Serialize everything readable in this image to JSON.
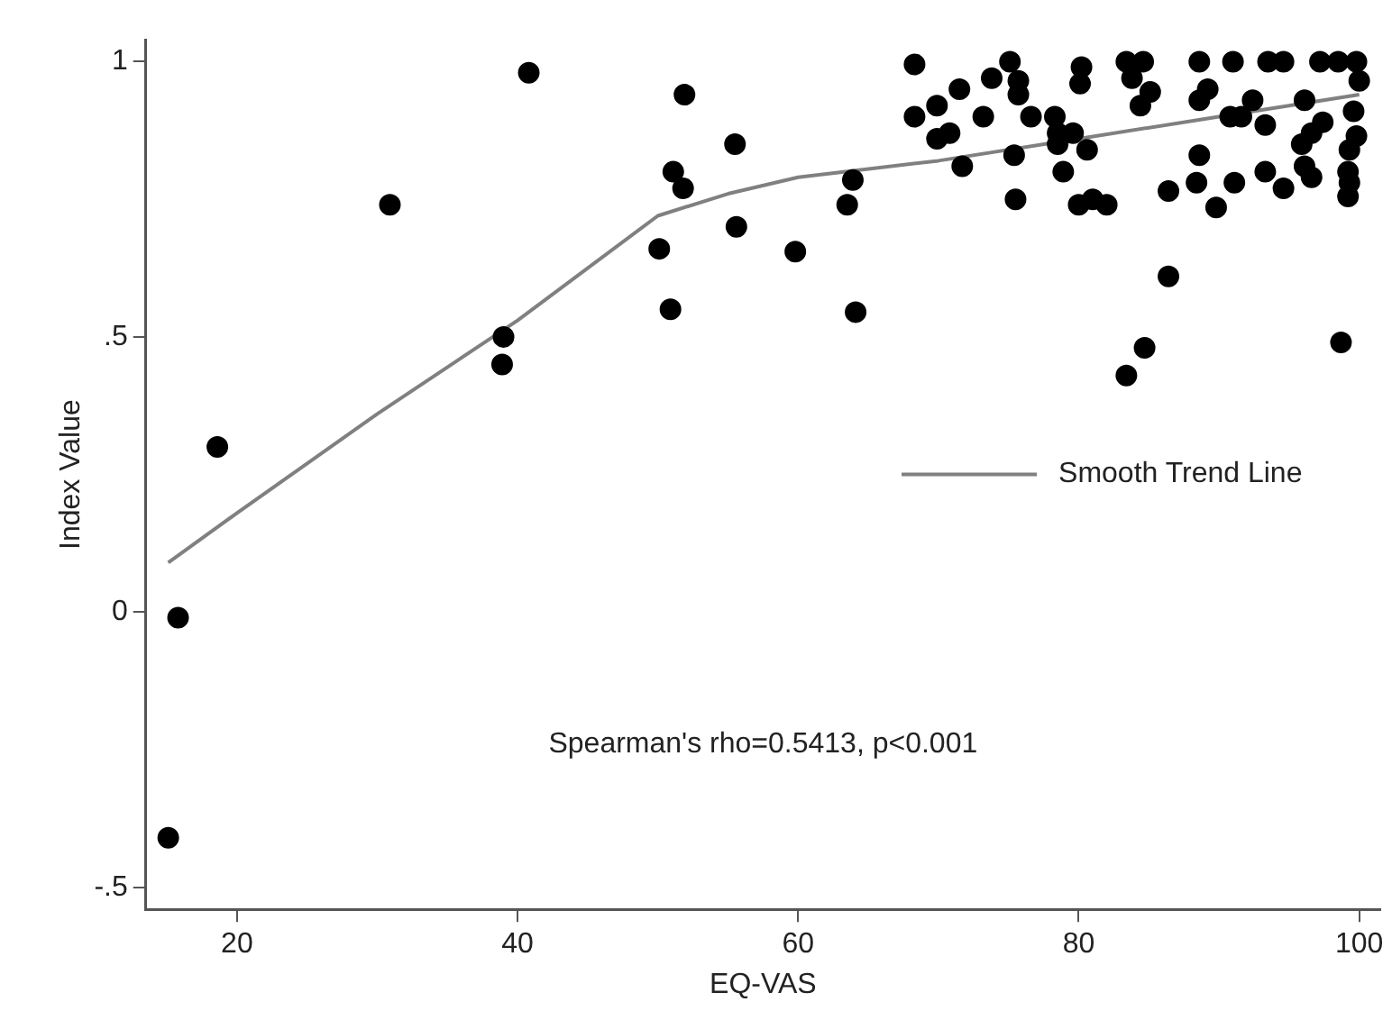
{
  "chart_data": {
    "type": "scatter",
    "xlabel": "EQ-VAS",
    "ylabel": "Index Value",
    "xlim": [
      13.5,
      101.5
    ],
    "xticks": [
      20,
      40,
      60,
      80,
      100
    ],
    "ylim": [
      -0.54,
      1.04
    ],
    "yticks": [
      {
        "value": -0.5,
        "label": "-.5"
      },
      0,
      {
        "value": 0.5,
        "label": ".5"
      },
      1
    ],
    "grid": false,
    "legend": "right",
    "marker": "circle",
    "annotations": [
      "Spearman's rho=0.5413, p<0.001"
    ],
    "series": [
      {
        "color": "#000000",
        "x": [
          40.8,
          51.9,
          30.9,
          51.1,
          51.8,
          50.1,
          50.9,
          39.0,
          38.9,
          18.6,
          15.8,
          15.1,
          68.3,
          68.3,
          69.9,
          71.5,
          73.8,
          75.1,
          75.7,
          75.7,
          73.2,
          69.9,
          70.8,
          71.7,
          76.6,
          78.3,
          78.5,
          79.6,
          78.5,
          80.6,
          75.4,
          78.9,
          75.5,
          80.0,
          81.0,
          82.0,
          80.2,
          80.1,
          83.4,
          84.6,
          83.8,
          85.1,
          84.4,
          86.4,
          86.4,
          84.7,
          83.4,
          88.6,
          89.2,
          88.6,
          88.6,
          88.4,
          89.8,
          91.0,
          92.4,
          90.8,
          91.6,
          93.3,
          91.1,
          93.3,
          94.6,
          93.5,
          94.6,
          97.2,
          98.5,
          99.8,
          100.0,
          96.1,
          97.4,
          96.6,
          95.9,
          99.6,
          99.8,
          99.3,
          96.1,
          96.6,
          99.2,
          99.3,
          99.2,
          98.7,
          55.5,
          55.6,
          59.8,
          63.9,
          63.5,
          64.1
        ],
        "values": [
          0.98,
          0.94,
          0.74,
          0.8,
          0.77,
          0.66,
          0.55,
          0.5,
          0.45,
          0.3,
          -0.01,
          -0.41,
          0.995,
          0.9,
          0.92,
          0.95,
          0.97,
          1.0,
          0.965,
          0.94,
          0.9,
          0.86,
          0.87,
          0.81,
          0.9,
          0.9,
          0.87,
          0.87,
          0.85,
          0.84,
          0.83,
          0.8,
          0.75,
          0.74,
          0.75,
          0.74,
          0.99,
          0.96,
          1.0,
          1.0,
          0.97,
          0.945,
          0.92,
          0.765,
          0.61,
          0.48,
          0.43,
          1.0,
          0.95,
          0.93,
          0.83,
          0.78,
          0.735,
          1.0,
          0.93,
          0.9,
          0.9,
          0.885,
          0.78,
          0.8,
          0.77,
          1.0,
          1.0,
          1.0,
          1.0,
          1.0,
          0.965,
          0.93,
          0.89,
          0.87,
          0.85,
          0.91,
          0.865,
          0.84,
          0.81,
          0.79,
          0.8,
          0.78,
          0.755,
          0.49,
          0.85,
          0.7,
          0.655,
          0.785,
          0.74,
          0.545
        ]
      },
      {
        "type": "line",
        "name": "Smooth Trend Line",
        "color": "#808080",
        "marker": "none",
        "x": [
          15.1,
          20,
          30,
          40,
          50,
          55,
          60,
          70,
          80,
          90,
          100
        ],
        "values": [
          0.09,
          0.18,
          0.36,
          0.53,
          0.72,
          0.76,
          0.79,
          0.82,
          0.86,
          0.9,
          0.94
        ]
      }
    ]
  }
}
